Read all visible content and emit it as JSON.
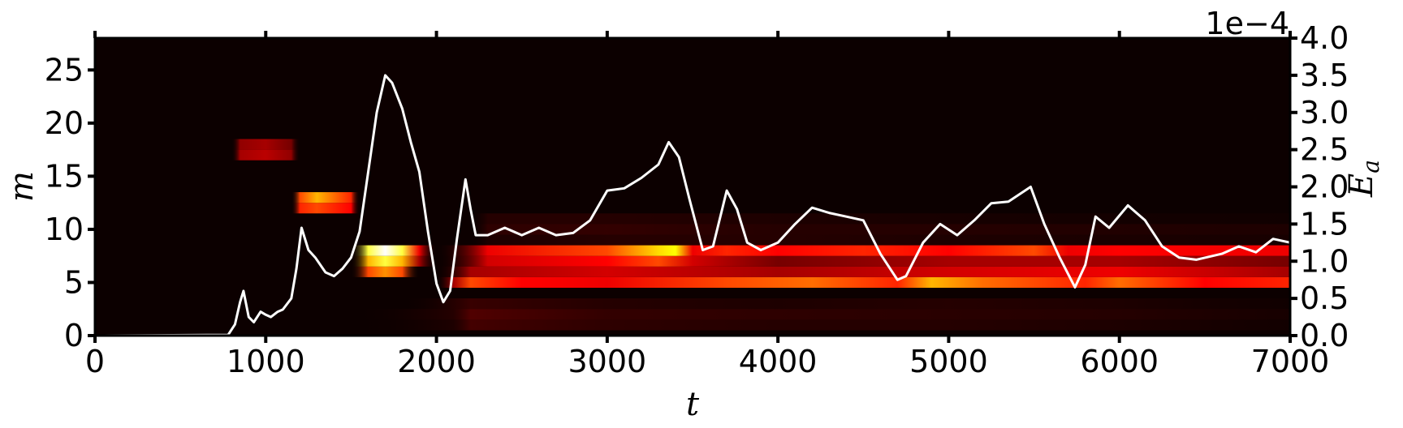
{
  "chart_data": {
    "type": "heatmap",
    "title": "",
    "xlabel": "t",
    "ylabel_left": "m",
    "ylabel_right": "E",
    "ylabel_right_sub": "a",
    "right_axis_offset": "1e−4",
    "xlim": [
      0,
      7000
    ],
    "ylim_left": [
      0,
      28
    ],
    "ylim_right": [
      0,
      4.0
    ],
    "x_ticks": [
      0,
      1000,
      2000,
      3000,
      4000,
      5000,
      6000,
      7000
    ],
    "x_tick_labels": [
      "0",
      "1000",
      "2000",
      "3000",
      "4000",
      "5000",
      "6000",
      "7000"
    ],
    "y_left_ticks": [
      0,
      5,
      10,
      15,
      20,
      25
    ],
    "y_left_tick_labels": [
      "0",
      "5",
      "10",
      "15",
      "20",
      "25"
    ],
    "y_right_ticks": [
      0,
      0.5,
      1.0,
      1.5,
      2.0,
      2.5,
      3.0,
      3.5,
      4.0
    ],
    "y_right_tick_labels": [
      "0.0",
      "0.5",
      "1.0",
      "1.5",
      "2.0",
      "2.5",
      "3.0",
      "3.5",
      "4.0"
    ],
    "grid": false,
    "colormap": "hot",
    "line_color": "#ffffff",
    "background_color": "#0c0000",
    "heatmap_bands": [
      {
        "m": 1,
        "intensity": [
          [
            0,
            0
          ],
          [
            1500,
            0
          ],
          [
            2100,
            0.1
          ],
          [
            2200,
            0.18
          ],
          [
            3000,
            0.14
          ],
          [
            4000,
            0.12
          ],
          [
            5000,
            0.12
          ],
          [
            6000,
            0.1
          ],
          [
            7000,
            0.06
          ]
        ]
      },
      {
        "m": 2,
        "intensity": [
          [
            0,
            0
          ],
          [
            1500,
            0
          ],
          [
            2100,
            0.12
          ],
          [
            2200,
            0.2
          ],
          [
            3000,
            0.15
          ],
          [
            4000,
            0.14
          ],
          [
            5000,
            0.13
          ],
          [
            6000,
            0.12
          ],
          [
            7000,
            0.08
          ]
        ]
      },
      {
        "m": 3,
        "intensity": [
          [
            0,
            0
          ],
          [
            1800,
            0
          ],
          [
            2200,
            0.16
          ],
          [
            3000,
            0.12
          ],
          [
            4000,
            0.1
          ],
          [
            5000,
            0.12
          ],
          [
            6000,
            0.1
          ],
          [
            7000,
            0.05
          ]
        ]
      },
      {
        "m": 5,
        "intensity": [
          [
            0,
            0
          ],
          [
            2000,
            0
          ],
          [
            2100,
            0.3
          ],
          [
            2200,
            0.55
          ],
          [
            2500,
            0.45
          ],
          [
            3000,
            0.4
          ],
          [
            3700,
            0.55
          ],
          [
            4200,
            0.6
          ],
          [
            4700,
            0.5
          ],
          [
            4900,
            0.7
          ],
          [
            5200,
            0.6
          ],
          [
            5500,
            0.55
          ],
          [
            5800,
            0.5
          ],
          [
            6000,
            0.6
          ],
          [
            6500,
            0.45
          ],
          [
            7000,
            0.5
          ]
        ]
      },
      {
        "m": 6,
        "intensity": [
          [
            0,
            0
          ],
          [
            1500,
            0
          ],
          [
            1600,
            0.55
          ],
          [
            1700,
            0.65
          ],
          [
            1800,
            0.55
          ],
          [
            1900,
            0
          ],
          [
            2000,
            0
          ],
          [
            2200,
            0.3
          ],
          [
            3000,
            0.35
          ],
          [
            4000,
            0.3
          ],
          [
            5000,
            0.35
          ],
          [
            6000,
            0.4
          ],
          [
            7000,
            0.3
          ]
        ]
      },
      {
        "m": 7,
        "intensity": [
          [
            0,
            0
          ],
          [
            1500,
            0
          ],
          [
            1600,
            0.7
          ],
          [
            1700,
            0.85
          ],
          [
            1800,
            0.7
          ],
          [
            1900,
            0.3
          ],
          [
            2000,
            0
          ],
          [
            2300,
            0.35
          ],
          [
            3000,
            0.45
          ],
          [
            3300,
            0.55
          ],
          [
            3500,
            0.35
          ],
          [
            4000,
            0.25
          ],
          [
            5000,
            0.3
          ],
          [
            6000,
            0.3
          ],
          [
            7000,
            0.25
          ]
        ]
      },
      {
        "m": 8,
        "intensity": [
          [
            0,
            0
          ],
          [
            1500,
            0
          ],
          [
            1600,
            0.85
          ],
          [
            1700,
            1.0
          ],
          [
            1800,
            0.85
          ],
          [
            1900,
            0.4
          ],
          [
            2000,
            0
          ],
          [
            2300,
            0.4
          ],
          [
            3000,
            0.55
          ],
          [
            3300,
            0.75
          ],
          [
            3400,
            0.8
          ],
          [
            3500,
            0.4
          ],
          [
            3700,
            0.5
          ],
          [
            4000,
            0.45
          ],
          [
            4500,
            0.5
          ],
          [
            5000,
            0.45
          ],
          [
            5500,
            0.55
          ],
          [
            5700,
            0.4
          ],
          [
            6000,
            0.45
          ],
          [
            7000,
            0.4
          ]
        ]
      },
      {
        "m": 9,
        "intensity": [
          [
            0,
            0
          ],
          [
            2200,
            0
          ],
          [
            2300,
            0.1
          ],
          [
            3000,
            0.12
          ],
          [
            4000,
            0.12
          ],
          [
            5000,
            0.1
          ],
          [
            7000,
            0.08
          ]
        ]
      },
      {
        "m": 10,
        "intensity": [
          [
            0,
            0
          ],
          [
            2200,
            0
          ],
          [
            2300,
            0.14
          ],
          [
            3000,
            0.15
          ],
          [
            4000,
            0.12
          ],
          [
            5000,
            0.12
          ],
          [
            7000,
            0.1
          ]
        ]
      },
      {
        "m": 11,
        "intensity": [
          [
            0,
            0
          ],
          [
            2200,
            0
          ],
          [
            2300,
            0.12
          ],
          [
            3000,
            0.12
          ],
          [
            4000,
            0.1
          ],
          [
            5000,
            0.08
          ],
          [
            7000,
            0.05
          ]
        ]
      },
      {
        "m": 12,
        "intensity": [
          [
            0,
            0
          ],
          [
            1150,
            0
          ],
          [
            1200,
            0.5
          ],
          [
            1300,
            0.55
          ],
          [
            1500,
            0.45
          ],
          [
            1550,
            0
          ],
          [
            7000,
            0
          ]
        ]
      },
      {
        "m": 13,
        "intensity": [
          [
            0,
            0
          ],
          [
            1150,
            0
          ],
          [
            1200,
            0.55
          ],
          [
            1300,
            0.7
          ],
          [
            1500,
            0.5
          ],
          [
            1550,
            0
          ],
          [
            7000,
            0
          ]
        ]
      },
      {
        "m": 17,
        "intensity": [
          [
            0,
            0
          ],
          [
            800,
            0
          ],
          [
            850,
            0.3
          ],
          [
            1000,
            0.32
          ],
          [
            1150,
            0.28
          ],
          [
            1200,
            0
          ],
          [
            7000,
            0
          ]
        ]
      },
      {
        "m": 18,
        "intensity": [
          [
            0,
            0
          ],
          [
            800,
            0
          ],
          [
            850,
            0.28
          ],
          [
            1000,
            0.3
          ],
          [
            1150,
            0.25
          ],
          [
            1200,
            0
          ],
          [
            7000,
            0
          ]
        ]
      }
    ],
    "line_series": {
      "name": "",
      "axis": "right",
      "points": [
        [
          0,
          0
        ],
        [
          780,
          0.01
        ],
        [
          820,
          0.15
        ],
        [
          850,
          0.45
        ],
        [
          870,
          0.6
        ],
        [
          900,
          0.25
        ],
        [
          930,
          0.18
        ],
        [
          970,
          0.32
        ],
        [
          1000,
          0.28
        ],
        [
          1030,
          0.25
        ],
        [
          1070,
          0.32
        ],
        [
          1100,
          0.35
        ],
        [
          1150,
          0.5
        ],
        [
          1180,
          0.9
        ],
        [
          1210,
          1.45
        ],
        [
          1250,
          1.15
        ],
        [
          1290,
          1.05
        ],
        [
          1350,
          0.85
        ],
        [
          1400,
          0.8
        ],
        [
          1450,
          0.9
        ],
        [
          1500,
          1.05
        ],
        [
          1550,
          1.4
        ],
        [
          1600,
          2.2
        ],
        [
          1650,
          3.0
        ],
        [
          1700,
          3.5
        ],
        [
          1740,
          3.4
        ],
        [
          1800,
          3.05
        ],
        [
          1850,
          2.6
        ],
        [
          1900,
          2.2
        ],
        [
          1950,
          1.4
        ],
        [
          2000,
          0.7
        ],
        [
          2040,
          0.45
        ],
        [
          2080,
          0.6
        ],
        [
          2120,
          1.3
        ],
        [
          2170,
          2.1
        ],
        [
          2200,
          1.7
        ],
        [
          2230,
          1.35
        ],
        [
          2300,
          1.35
        ],
        [
          2400,
          1.45
        ],
        [
          2500,
          1.35
        ],
        [
          2600,
          1.45
        ],
        [
          2700,
          1.35
        ],
        [
          2800,
          1.38
        ],
        [
          2900,
          1.55
        ],
        [
          3000,
          1.95
        ],
        [
          3100,
          1.98
        ],
        [
          3200,
          2.12
        ],
        [
          3300,
          2.3
        ],
        [
          3360,
          2.6
        ],
        [
          3420,
          2.4
        ],
        [
          3480,
          1.85
        ],
        [
          3560,
          1.15
        ],
        [
          3620,
          1.2
        ],
        [
          3700,
          1.95
        ],
        [
          3760,
          1.7
        ],
        [
          3820,
          1.25
        ],
        [
          3900,
          1.15
        ],
        [
          4000,
          1.25
        ],
        [
          4100,
          1.5
        ],
        [
          4200,
          1.72
        ],
        [
          4300,
          1.65
        ],
        [
          4400,
          1.6
        ],
        [
          4500,
          1.55
        ],
        [
          4600,
          1.1
        ],
        [
          4700,
          0.75
        ],
        [
          4750,
          0.8
        ],
        [
          4850,
          1.25
        ],
        [
          4950,
          1.5
        ],
        [
          5050,
          1.35
        ],
        [
          5150,
          1.55
        ],
        [
          5250,
          1.78
        ],
        [
          5350,
          1.8
        ],
        [
          5480,
          2.0
        ],
        [
          5560,
          1.5
        ],
        [
          5650,
          1.05
        ],
        [
          5740,
          0.65
        ],
        [
          5800,
          0.95
        ],
        [
          5860,
          1.6
        ],
        [
          5940,
          1.45
        ],
        [
          6050,
          1.75
        ],
        [
          6150,
          1.55
        ],
        [
          6250,
          1.2
        ],
        [
          6350,
          1.05
        ],
        [
          6450,
          1.02
        ],
        [
          6600,
          1.1
        ],
        [
          6700,
          1.2
        ],
        [
          6800,
          1.12
        ],
        [
          6900,
          1.3
        ],
        [
          7000,
          1.25
        ]
      ]
    }
  }
}
